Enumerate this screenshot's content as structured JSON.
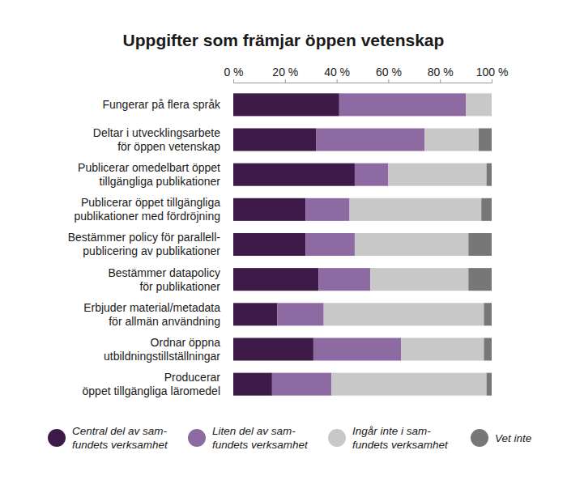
{
  "chart_data": {
    "type": "bar",
    "orientation": "horizontal",
    "stacked": true,
    "title": "Uppgifter som främjar öppen vetenskap",
    "categories": [
      "Fungerar på flera språk",
      "Deltar i utvecklingsarbete\nför öppen vetenskap",
      "Publicerar omedelbart öppet\ntillgängliga publikationer",
      "Publicerar öppet tillgängliga\npublikationer med fördröjning",
      "Bestämmer policy för parallell-\npublicering av publikationer",
      "Bestämmer datapolicy\nför publikationer",
      "Erbjuder material/metadata\nför allmän användning",
      "Ordnar öppna\nutbildningstillställningar",
      "Producerar\nöppet tillgängliga läromedel"
    ],
    "series": [
      {
        "name": "Central del av sam-\nfundets verksamhet",
        "color": "#3d1a47",
        "values": [
          41,
          32,
          47,
          28,
          28,
          33,
          17,
          31,
          15
        ]
      },
      {
        "name": "Liten del av sam-\nfundets verksamhet",
        "color": "#8e6aa3",
        "values": [
          49,
          42,
          13,
          17,
          19,
          20,
          18,
          34,
          23
        ]
      },
      {
        "name": "Ingår inte i sam-\nfundets verksamhet",
        "color": "#c8c8c8",
        "values": [
          10,
          21,
          38,
          51,
          44,
          38,
          62,
          32,
          60
        ]
      },
      {
        "name": "Vet inte",
        "color": "#777777",
        "values": [
          0,
          5,
          2,
          4,
          9,
          9,
          3,
          3,
          2
        ]
      }
    ],
    "xlim": [
      0,
      100
    ],
    "xticks": [
      {
        "value": 0,
        "label": "0 %"
      },
      {
        "value": 20,
        "label": "20 %"
      },
      {
        "value": 40,
        "label": "40 %"
      },
      {
        "value": 60,
        "label": "60 %"
      },
      {
        "value": 80,
        "label": "80 %"
      },
      {
        "value": 100,
        "label": "100 %"
      }
    ],
    "legend": "bottom"
  }
}
